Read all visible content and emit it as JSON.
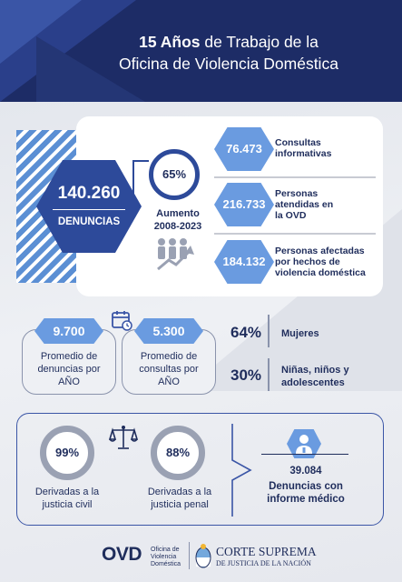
{
  "header": {
    "title_line1_bold": "15 Años",
    "title_line1_rest": " de Trabajo de la",
    "title_line2": "Oficina de Violencia Doméstica"
  },
  "denuncias": {
    "value": "140.260",
    "label": "DENUNCIAS"
  },
  "aumento": {
    "percent": "65%",
    "label_line1": "Aumento",
    "label_line2": "2008-2023"
  },
  "stats": [
    {
      "value": "76.473",
      "label_line1": "Consultas",
      "label_line2": "informativas",
      "label_line3": ""
    },
    {
      "value": "216.733",
      "label_line1": "Personas",
      "label_line2": "atendidas en",
      "label_line3": "la OVD"
    },
    {
      "value": "184.132",
      "label_line1": "Personas afectadas",
      "label_line2": "por hechos de",
      "label_line3": "violencia doméstica"
    }
  ],
  "promedios": [
    {
      "value": "9.700",
      "line1": "Promedio de",
      "line2": "denuncias por",
      "line3": "AÑO"
    },
    {
      "value": "5.300",
      "line1": "Promedio de",
      "line2": "consultas por",
      "line3": "AÑO"
    }
  ],
  "afectados": [
    {
      "percent": "64%",
      "line1": "Mujeres",
      "line2": ""
    },
    {
      "percent": "30%",
      "line1": "Niñas, niños y",
      "line2": "adolescentes"
    }
  ],
  "derivadas": [
    {
      "percent": "99%",
      "line1": "Derivadas a la",
      "line2": "justicia civil"
    },
    {
      "percent": "88%",
      "line1": "Derivadas a la",
      "line2": "justicia penal"
    }
  ],
  "informe": {
    "value": "39.084",
    "line1": "Denuncias con",
    "line2": "informe médico"
  },
  "footer": {
    "ovd": "OVD",
    "ovd_sub1": "Oficina de",
    "ovd_sub2": "Violencia",
    "ovd_sub3": "Doméstica",
    "cs_line1": "CORTE SUPREMA",
    "cs_line2": "DE JUSTICIA DE LA NACIÓN"
  },
  "colors": {
    "navy": "#1d2c66",
    "blue": "#2d4a9a",
    "light_blue": "#6a9be0",
    "text": "#1f2d5c"
  },
  "icons": [
    "people-growth-icon",
    "calendar-icon",
    "scale-icon",
    "chevron-right-icon",
    "doctor-icon",
    "argentina-seal-icon"
  ]
}
